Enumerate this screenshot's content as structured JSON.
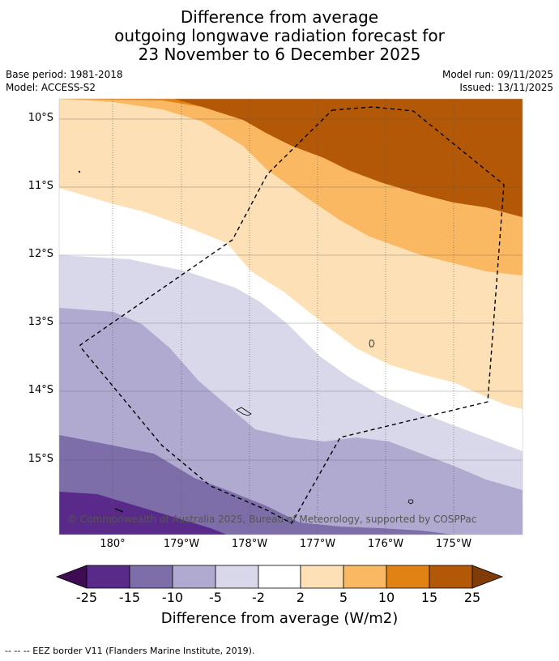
{
  "title": {
    "line1": "Difference from average",
    "line2": "outgoing longwave radiation forecast for",
    "line3": "23 November to 6 December 2025"
  },
  "meta": {
    "base_period": "Base period: 1981-2018",
    "model": "Model: ACCESS-S2",
    "model_run": "Model run: 09/11/2025",
    "issued": "Issued: 13/11/2025"
  },
  "map": {
    "lat_labels": [
      "10°S",
      "11°S",
      "12°S",
      "13°S",
      "14°S",
      "15°S"
    ],
    "lon_labels": [
      "180°",
      "179°W",
      "178°W",
      "177°W",
      "176°W",
      "175°W"
    ],
    "copyright": "© Commonwealth of Australia 2025, Bureau of Meteorology, supported by COSPPac"
  },
  "colorbar": {
    "ticks": [
      "-25",
      "-15",
      "-10",
      "-5",
      "-2",
      "2",
      "5",
      "10",
      "15",
      "25"
    ],
    "colors": [
      "#3f0c53",
      "#5a2a8a",
      "#7d6eaa",
      "#b0aad1",
      "#d8d8ea",
      "#ffffff",
      "#fde0b6",
      "#fbb862",
      "#e08214",
      "#b35806",
      "#7f3b08"
    ],
    "label": "Difference from average (W/m2)"
  },
  "footnote": "--  --  -- EEZ border V11 (Flanders Marine Institute, 2019)."
}
